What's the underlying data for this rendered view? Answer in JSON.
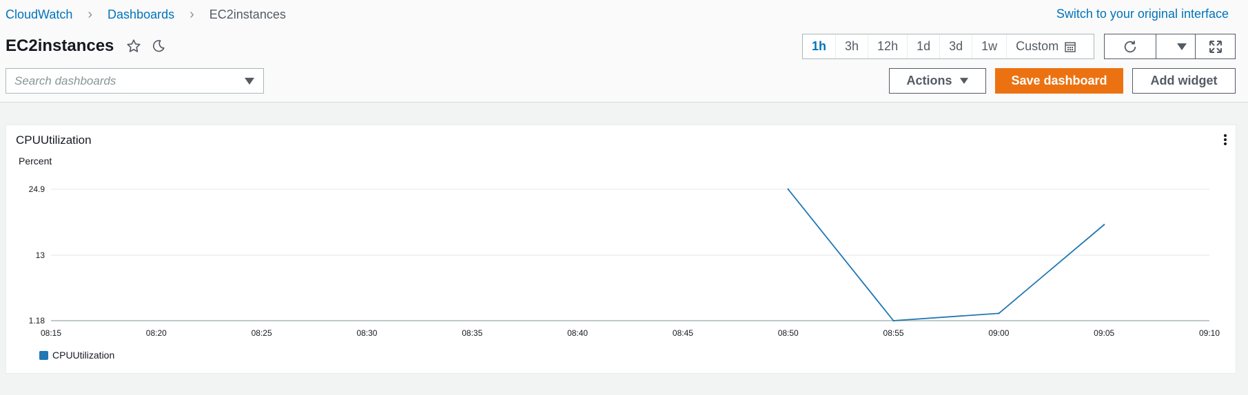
{
  "breadcrumb": {
    "items": [
      "CloudWatch",
      "Dashboards"
    ],
    "current": "EC2instances"
  },
  "switch_link": "Switch to your original interface",
  "dashboard": {
    "title": "EC2instances"
  },
  "search": {
    "placeholder": "Search dashboards",
    "value": ""
  },
  "time_range": {
    "options": [
      "1h",
      "3h",
      "12h",
      "1d",
      "3d",
      "1w"
    ],
    "custom_label": "Custom",
    "selected": "1h"
  },
  "toolbar": {
    "actions_label": "Actions",
    "save_label": "Save dashboard",
    "add_widget_label": "Add widget"
  },
  "colors": {
    "accent": "#0073bb",
    "primary_button": "#ec7211",
    "series": "#1f77b4"
  },
  "widget": {
    "title": "CPUUtilization"
  },
  "chart_data": {
    "type": "line",
    "title": "CPUUtilization",
    "ylabel": "Percent",
    "xlabel": "",
    "ylim": [
      1.18,
      24.9
    ],
    "yticks": [
      "24.9",
      "13",
      "1.18"
    ],
    "xticks": [
      "08:15",
      "08:20",
      "08:25",
      "08:30",
      "08:35",
      "08:40",
      "08:45",
      "08:50",
      "08:55",
      "09:00",
      "09:05",
      "09:10"
    ],
    "xlim": [
      "08:15",
      "09:10"
    ],
    "grid": true,
    "legend": "bottom-left",
    "series": [
      {
        "name": "CPUUtilization",
        "color": "#1f77b4",
        "x": [
          "08:50",
          "08:55",
          "09:00",
          "09:05"
        ],
        "values": [
          24.9,
          1.18,
          2.5,
          18.5
        ]
      }
    ]
  }
}
